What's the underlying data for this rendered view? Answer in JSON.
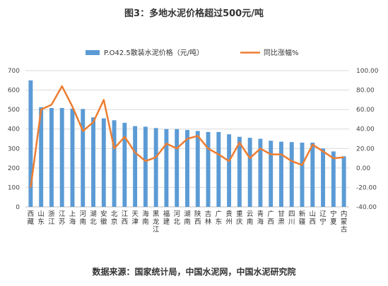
{
  "title": "图3：多地水泥价格超过500元/吨",
  "source": "数据来源：国家统计局，中国水泥网，中国水泥研究院",
  "colors": {
    "bar": "#5b9bd5",
    "line": "#ed7d31",
    "axis": "#bfbfbf",
    "grid": "#d9d9d9"
  },
  "chart_data": {
    "type": "bar+line",
    "categories": [
      "西藏",
      "山东",
      "浙江",
      "江苏",
      "上海",
      "河南",
      "湖北",
      "安徽",
      "北京",
      "江西",
      "天津",
      "海南",
      "黑龙江",
      "福建",
      "河北",
      "湖南",
      "陕西",
      "吉林",
      "广东",
      "贵州",
      "重庆",
      "云南",
      "青海",
      "广西",
      "甘肃",
      "四川",
      "新疆",
      "山西",
      "辽宁",
      "宁夏",
      "内蒙古"
    ],
    "series": [
      {
        "name": "P.O42.5散装水泥价格（元/吨）",
        "type": "bar",
        "axis": "left",
        "values": [
          650,
          512,
          508,
          508,
          505,
          503,
          460,
          455,
          445,
          432,
          415,
          412,
          405,
          400,
          400,
          395,
          390,
          385,
          385,
          373,
          360,
          355,
          350,
          340,
          335,
          333,
          330,
          330,
          300,
          285,
          260
        ]
      },
      {
        "name": "同比涨幅%",
        "type": "line",
        "axis": "right",
        "values": [
          -20,
          60,
          65,
          84,
          63,
          38,
          47,
          70,
          20,
          32,
          16,
          7,
          11,
          25,
          20,
          30,
          33,
          20,
          14,
          7,
          26,
          10,
          20,
          14,
          14,
          7,
          3,
          24,
          17,
          10,
          11
        ]
      }
    ],
    "y_left": {
      "min": 0,
      "max": 700,
      "ticks": [
        "0",
        "100",
        "200",
        "300",
        "400",
        "500",
        "600",
        "700"
      ]
    },
    "y_right": {
      "min": -40,
      "max": 100,
      "ticks": [
        "-40.00",
        "-20.00",
        "0.00",
        "20.00",
        "40.00",
        "60.00",
        "80.00",
        "100.00"
      ]
    },
    "legend_position": "top"
  }
}
